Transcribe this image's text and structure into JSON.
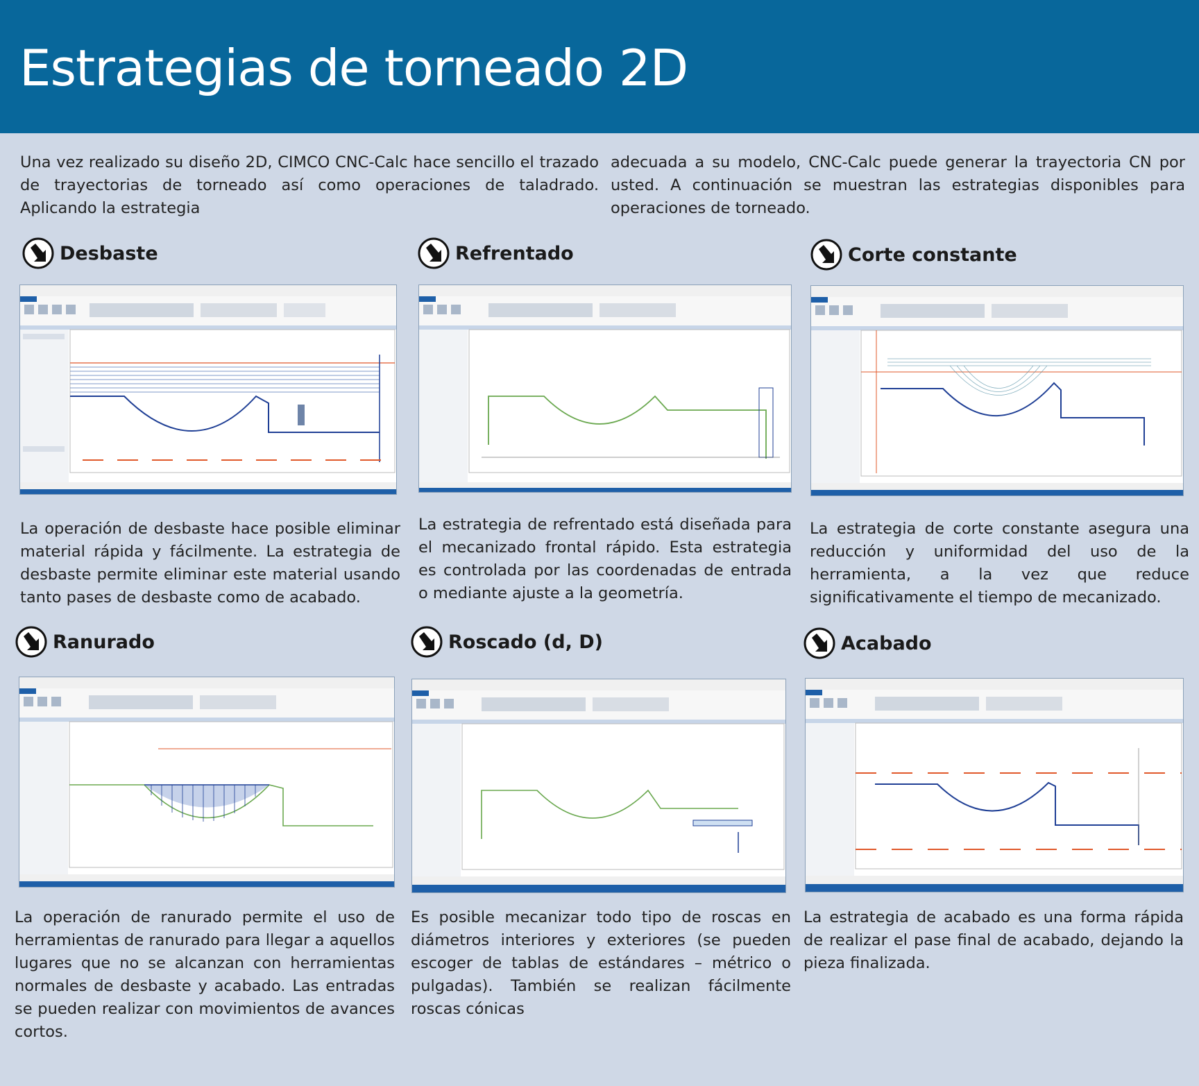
{
  "header": {
    "title": "Estrategias de torneado 2D"
  },
  "intro": {
    "left": "Una vez realizado su diseño 2D, CIMCO CNC-Calc hace sencillo el trazado de trayectorias de torneado así como operaciones de taladrado. Aplicando la estrategia",
    "right": "adecuada a su modelo, CNC-Calc puede generar la trayectoria CN por usted. A continuación se muestran las estrategias disponibles para operaciones de torneado."
  },
  "sections": [
    {
      "title": "Desbaste",
      "text": "La operación de desbaste hace posible eliminar material rápida y fácilmente. La estrategia de desbaste permite eliminar este material usando tanto pases de desbaste como de acabado."
    },
    {
      "title": "Refrentado",
      "text": "La estrategia de refrentado está diseñada para el mecanizado frontal rápido. Esta estrategia es controlada por las coordenadas de entrada o mediante ajuste a la geometría."
    },
    {
      "title": "Corte constante",
      "text": "La estrategia de corte constante asegura una reducción y uniformidad del uso de la herramienta, a la vez que reduce significativamente el tiempo de mecanizado."
    },
    {
      "title": "Ranurado",
      "text": "La operación de ranurado permite el uso de herramientas de ranurado para llegar a aquellos lugares que no se alcanzan con herramientas normales de desbaste y acabado. Las entradas se pueden realizar con movimientos de avances cortos."
    },
    {
      "title": "Roscado (d, D)",
      "text": "Es posible mecanizar todo tipo de roscas en diámetros interiores y exteriores (se pueden escoger de tablas de estándares – métrico o pulgadas). También se realizan fácilmente roscas cónicas"
    },
    {
      "title": "Acabado",
      "text": "La estrategia de acabado es una forma rápida de realizar el pase final de acabado, dejando la pieza finalizada."
    }
  ],
  "colors": {
    "header_bg": "#08679b",
    "page_bg": "#cfd8e6",
    "toolpath_blue": "#1f3f95",
    "geometry_green": "#6aa84f",
    "stock_orange": "#e0582a",
    "status_bar": "#1e5fa8"
  },
  "icons": {
    "section": "arrow-down-right-circle-icon"
  }
}
